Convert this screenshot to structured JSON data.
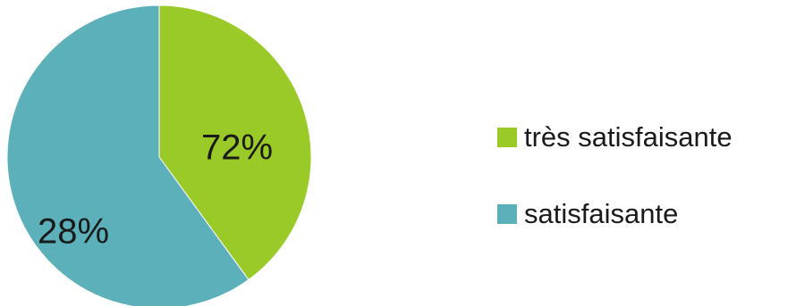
{
  "chart_data": {
    "type": "pie",
    "title": "",
    "categories": [
      "très satisfaisante",
      "satisfaisante"
    ],
    "values": [
      72,
      28
    ],
    "data_labels": [
      "72%",
      "28%"
    ],
    "colors": [
      "#9ACA27",
      "#5BB0B9"
    ],
    "start_angle": "12 o'clock",
    "direction": "clockwise",
    "legend": {
      "position": "right",
      "entries": [
        "très satisfaisante",
        "satisfaisante"
      ]
    }
  }
}
